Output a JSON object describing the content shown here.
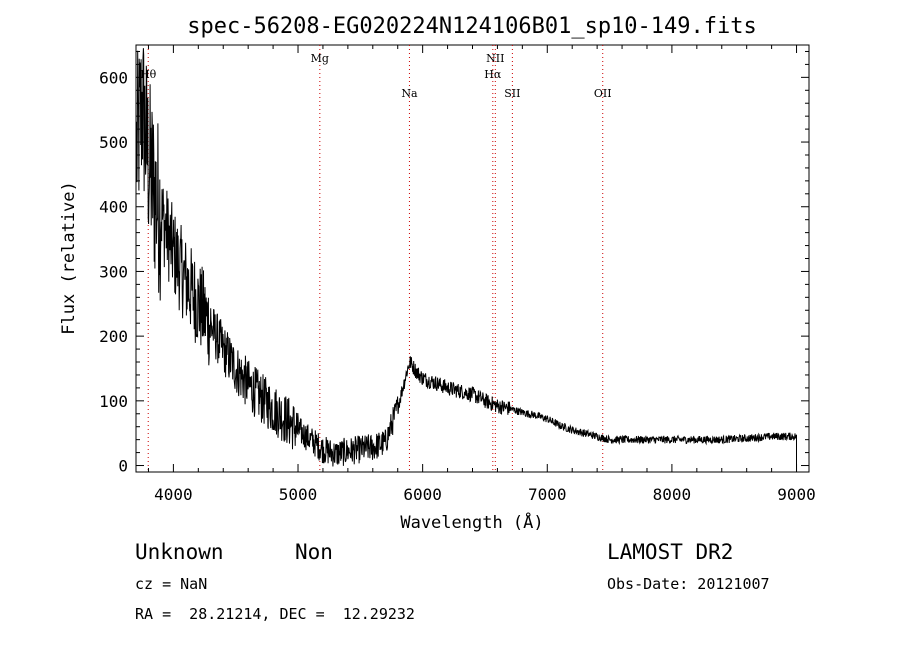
{
  "chart_data": {
    "type": "line",
    "title": "spec-56208-EG020224N124106B01_sp10-149.fits",
    "xlabel": "Wavelength (Å)",
    "ylabel": "Flux (relative)",
    "xlim": [
      3700,
      9100
    ],
    "ylim": [
      -10,
      650
    ],
    "x_ticks": [
      4000,
      5000,
      6000,
      7000,
      8000,
      9000
    ],
    "y_ticks": [
      0,
      100,
      200,
      300,
      400,
      500,
      600
    ],
    "grid": false,
    "series": [
      {
        "x": [
          3700,
          3750,
          3800,
          3850,
          3900,
          3950,
          4000,
          4100,
          4200,
          4300,
          4400,
          4500,
          4600,
          4700,
          4800,
          4900,
          5000,
          5100,
          5200,
          5300,
          5400,
          5500,
          5600,
          5700,
          5800,
          5880,
          5900,
          5950,
          6000,
          6100,
          6200,
          6300,
          6400,
          6500,
          6600,
          6700,
          6800,
          6900,
          7000,
          7100,
          7200,
          7300,
          7400,
          7500,
          7600,
          7800,
          8000,
          8200,
          8400,
          8600,
          8800,
          9000
        ],
        "y": [
          480,
          560,
          470,
          420,
          390,
          360,
          330,
          285,
          250,
          215,
          180,
          150,
          125,
          105,
          88,
          72,
          55,
          40,
          25,
          18,
          22,
          25,
          28,
          35,
          90,
          150,
          160,
          145,
          135,
          128,
          120,
          115,
          110,
          100,
          92,
          88,
          82,
          78,
          72,
          62,
          55,
          50,
          45,
          40,
          40,
          40,
          40,
          40,
          40,
          42,
          45,
          45
        ]
      }
    ],
    "lines": [
      {
        "label": "Hθ",
        "x": 3798,
        "row": 1
      },
      {
        "label": "Mg",
        "x": 5175,
        "row": 0
      },
      {
        "label": "Na",
        "x": 5894,
        "row": 2
      },
      {
        "label": "NII",
        "x": 6583,
        "row": 0
      },
      {
        "label": "Hα",
        "x": 6563,
        "row": 1
      },
      {
        "label": "SII",
        "x": 6720,
        "row": 2
      },
      {
        "label": "OII",
        "x": 7445,
        "row": 2
      }
    ]
  },
  "info": {
    "object_class": "Unknown",
    "object_subclass": "Non",
    "survey": "LAMOST DR2",
    "cz": "cz = NaN",
    "obs_date": "Obs-Date: 20121007",
    "radec": "RA =  28.21214, DEC =  12.29232"
  },
  "colors": {
    "spectrum": "#000000",
    "line_marker": "#cc0000",
    "axes": "#000000"
  }
}
